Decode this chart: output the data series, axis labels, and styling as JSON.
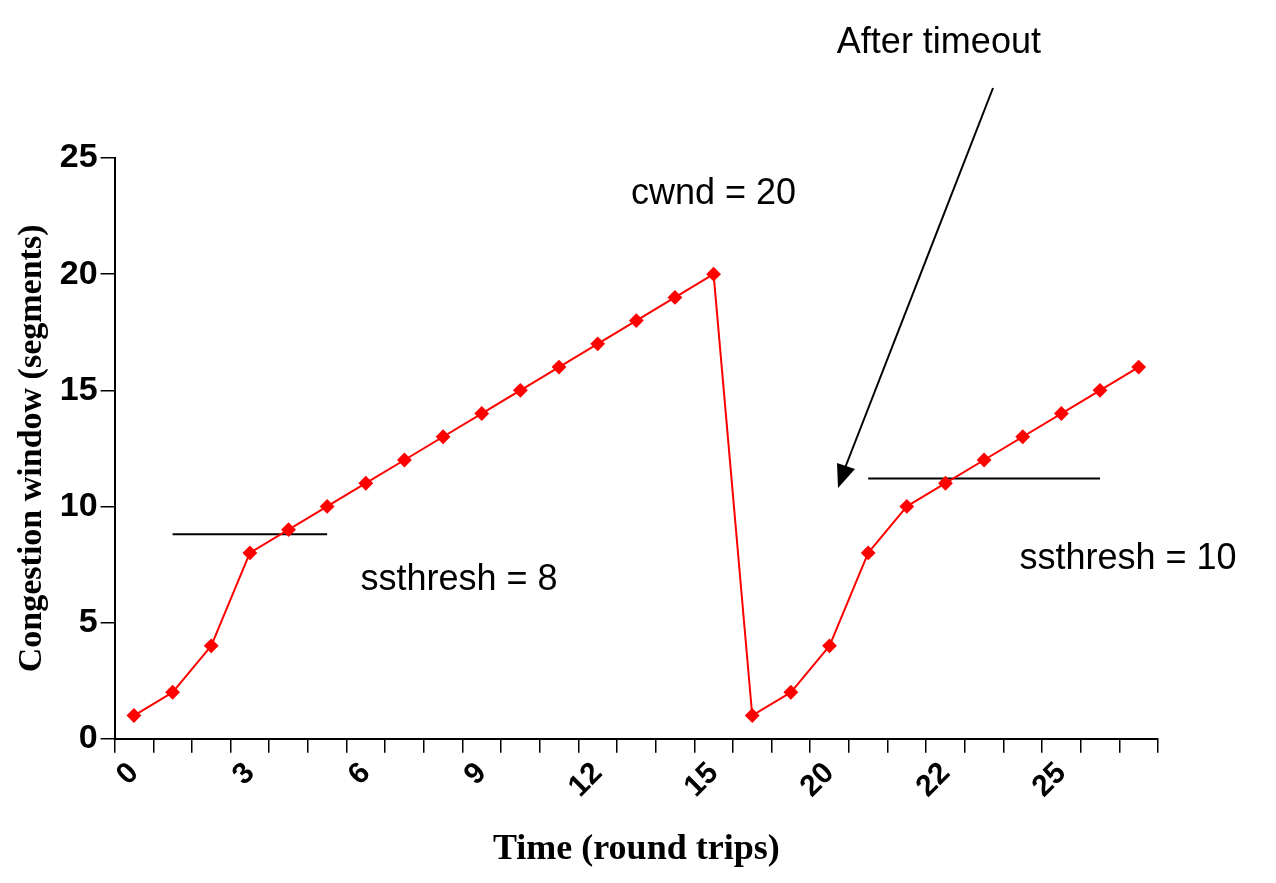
{
  "chart_data": {
    "type": "line",
    "xlabel": "Time (round trips)",
    "ylabel": "Congestion window (segments)",
    "categories": [
      "0",
      null,
      null,
      "3",
      null,
      null,
      "6",
      null,
      null,
      "9",
      null,
      null,
      "12",
      null,
      null,
      "15",
      null,
      null,
      "20",
      null,
      null,
      "22",
      null,
      null,
      "25",
      null,
      null
    ],
    "series": [
      {
        "color": "#ff0000",
        "marker": "diamond",
        "values": [
          1,
          2,
          4,
          8,
          9,
          10,
          11,
          12,
          13,
          14,
          15,
          16,
          17,
          18,
          19,
          20,
          1,
          2,
          4,
          8,
          10,
          11,
          12,
          13,
          14,
          15,
          16
        ]
      },
      {
        "color": "#000000",
        "marker": "none",
        "values": [
          null,
          8.8,
          8.8,
          8.8,
          8.8,
          8.8,
          null,
          null,
          null,
          null,
          null,
          null,
          null,
          null,
          null,
          null,
          null,
          null,
          null,
          null,
          null,
          null,
          null,
          null,
          null,
          null,
          null
        ]
      },
      {
        "color": "#000000",
        "marker": "none",
        "values": [
          null,
          null,
          null,
          null,
          null,
          null,
          null,
          null,
          null,
          null,
          null,
          null,
          null,
          null,
          null,
          null,
          null,
          null,
          null,
          11.2,
          11.2,
          11.2,
          11.2,
          11.2,
          11.2,
          11.2,
          null
        ]
      }
    ],
    "ylim": [
      0,
      25
    ],
    "yticks": [
      0,
      5,
      10,
      15,
      20,
      25
    ],
    "grid": false,
    "legend": false,
    "annotations": [
      {
        "text": "cwnd = 20",
        "x": "15",
        "y": 20
      },
      "After timeout",
      "ssthresh = 8",
      "ssthresh = 10"
    ]
  }
}
